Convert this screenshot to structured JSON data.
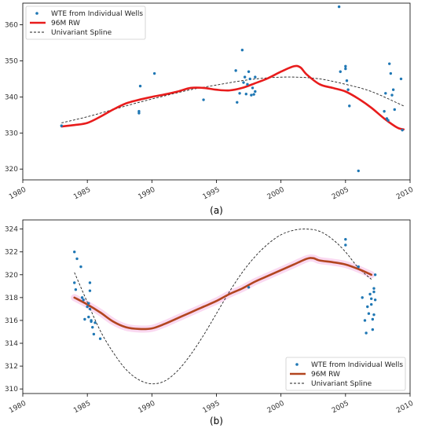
{
  "chart_data": [
    {
      "type": "scatter",
      "panel_label": "(a)",
      "xlim": [
        1980,
        2010
      ],
      "ylim": [
        317,
        366
      ],
      "xticks": [
        1980,
        1985,
        1990,
        1995,
        2000,
        2005,
        2010
      ],
      "yticks": [
        320,
        330,
        340,
        350,
        360
      ],
      "legend_position": "top-left",
      "grid": false,
      "series": [
        {
          "name": "WTE from Individual Wells",
          "kind": "scatter",
          "color": "#1f77b4",
          "points": [
            [
              1983.0,
              332.0
            ],
            [
              1989.0,
              335.5
            ],
            [
              1989.0,
              336.0
            ],
            [
              1989.1,
              343.0
            ],
            [
              1990.2,
              346.5
            ],
            [
              1994.0,
              339.2
            ],
            [
              1996.5,
              347.3
            ],
            [
              1996.6,
              338.5
            ],
            [
              1996.8,
              341.0
            ],
            [
              1997.0,
              353.0
            ],
            [
              1997.1,
              344.0
            ],
            [
              1997.2,
              345.5
            ],
            [
              1997.3,
              340.8
            ],
            [
              1997.4,
              343.5
            ],
            [
              1997.5,
              347.0
            ],
            [
              1997.6,
              345.0
            ],
            [
              1997.7,
              340.5
            ],
            [
              1997.8,
              342.5
            ],
            [
              1997.9,
              340.7
            ],
            [
              1998.0,
              345.5
            ],
            [
              1998.0,
              341.5
            ],
            [
              2004.5,
              365.0
            ],
            [
              2004.6,
              347.0
            ],
            [
              2005.0,
              348.5
            ],
            [
              2005.0,
              347.8
            ],
            [
              2005.1,
              344.5
            ],
            [
              2005.2,
              342.0
            ],
            [
              2005.3,
              337.5
            ],
            [
              2006.0,
              319.5
            ],
            [
              2008.0,
              336.0
            ],
            [
              2008.1,
              341.0
            ],
            [
              2008.2,
              334.0
            ],
            [
              2008.3,
              333.5
            ],
            [
              2008.4,
              349.2
            ],
            [
              2008.5,
              346.5
            ],
            [
              2008.6,
              340.5
            ],
            [
              2008.7,
              342.0
            ],
            [
              2008.8,
              336.5
            ],
            [
              2009.3,
              345.0
            ],
            [
              2009.4,
              330.8
            ]
          ]
        },
        {
          "name": "96M RW",
          "kind": "line",
          "color": "#e81c1c",
          "points": [
            [
              1983.0,
              331.8
            ],
            [
              1984.0,
              332.2
            ],
            [
              1985.0,
              332.8
            ],
            [
              1986.0,
              334.5
            ],
            [
              1987.0,
              336.5
            ],
            [
              1988.0,
              338.2
            ],
            [
              1989.0,
              339.2
            ],
            [
              1990.0,
              340.0
            ],
            [
              1991.0,
              340.7
            ],
            [
              1992.0,
              341.5
            ],
            [
              1993.0,
              342.5
            ],
            [
              1994.0,
              342.5
            ],
            [
              1995.0,
              342.0
            ],
            [
              1996.0,
              341.8
            ],
            [
              1997.0,
              342.5
            ],
            [
              1998.0,
              343.8
            ],
            [
              1999.0,
              345.2
            ],
            [
              2000.0,
              347.0
            ],
            [
              2001.0,
              348.5
            ],
            [
              2001.5,
              348.2
            ],
            [
              2002.0,
              346.2
            ],
            [
              2003.0,
              343.5
            ],
            [
              2004.0,
              342.5
            ],
            [
              2005.0,
              341.5
            ],
            [
              2006.0,
              339.5
            ],
            [
              2007.0,
              337.0
            ],
            [
              2008.0,
              334.0
            ],
            [
              2009.0,
              331.5
            ],
            [
              2009.5,
              331.0
            ]
          ]
        },
        {
          "name": "Univariant Spline",
          "kind": "dashed-line",
          "color": "#222222",
          "points": [
            [
              1983.0,
              332.8
            ],
            [
              1985.0,
              334.5
            ],
            [
              1987.0,
              336.5
            ],
            [
              1989.0,
              338.5
            ],
            [
              1991.0,
              340.3
            ],
            [
              1993.0,
              342.0
            ],
            [
              1995.0,
              343.3
            ],
            [
              1997.0,
              344.5
            ],
            [
              1999.0,
              345.3
            ],
            [
              2001.0,
              345.5
            ],
            [
              2003.0,
              345.0
            ],
            [
              2005.0,
              343.5
            ],
            [
              2007.0,
              341.5
            ],
            [
              2009.5,
              337.5
            ]
          ]
        }
      ]
    },
    {
      "type": "scatter",
      "panel_label": "(b)",
      "xlim": [
        1980,
        2010
      ],
      "ylim": [
        309.6,
        324.8
      ],
      "xticks": [
        1980,
        1985,
        1990,
        1995,
        2000,
        2005,
        2010
      ],
      "yticks": [
        310,
        312,
        314,
        316,
        318,
        320,
        322,
        324
      ],
      "legend_position": "bottom-right",
      "grid": false,
      "series": [
        {
          "name": "WTE from Individual Wells",
          "kind": "scatter",
          "color": "#1f77b4",
          "points": [
            [
              1984.0,
              322.0
            ],
            [
              1984.0,
              319.3
            ],
            [
              1984.1,
              318.7
            ],
            [
              1984.2,
              321.4
            ],
            [
              1984.5,
              320.7
            ],
            [
              1984.6,
              318.0
            ],
            [
              1984.7,
              317.8
            ],
            [
              1984.8,
              316.1
            ],
            [
              1985.0,
              317.2
            ],
            [
              1985.1,
              317.5
            ],
            [
              1985.1,
              316.3
            ],
            [
              1985.2,
              319.3
            ],
            [
              1985.2,
              318.6
            ],
            [
              1985.2,
              317.0
            ],
            [
              1985.3,
              316.0
            ],
            [
              1985.3,
              315.9
            ],
            [
              1985.4,
              315.4
            ],
            [
              1985.5,
              314.8
            ],
            [
              1985.6,
              315.8
            ],
            [
              1986.0,
              314.4
            ],
            [
              1997.5,
              318.9
            ],
            [
              2005.0,
              323.1
            ],
            [
              2005.0,
              322.6
            ],
            [
              2006.0,
              320.7
            ],
            [
              2006.3,
              318.0
            ],
            [
              2006.5,
              316.0
            ],
            [
              2006.6,
              314.9
            ],
            [
              2006.7,
              317.2
            ],
            [
              2006.8,
              316.6
            ],
            [
              2006.9,
              318.3
            ],
            [
              2007.0,
              317.9
            ],
            [
              2007.0,
              317.4
            ],
            [
              2007.1,
              316.1
            ],
            [
              2007.1,
              315.2
            ],
            [
              2007.2,
              318.8
            ],
            [
              2007.2,
              318.5
            ],
            [
              2007.2,
              316.5
            ],
            [
              2007.3,
              317.8
            ],
            [
              2007.3,
              320.0
            ]
          ]
        },
        {
          "name": "96M RW",
          "kind": "line",
          "color": "#b2451f",
          "points": [
            [
              1984.0,
              318.0
            ],
            [
              1985.0,
              317.4
            ],
            [
              1986.0,
              316.7
            ],
            [
              1987.0,
              315.9
            ],
            [
              1988.0,
              315.4
            ],
            [
              1989.0,
              315.25
            ],
            [
              1990.0,
              315.3
            ],
            [
              1991.0,
              315.7
            ],
            [
              1992.0,
              316.2
            ],
            [
              1993.0,
              316.7
            ],
            [
              1994.0,
              317.2
            ],
            [
              1995.0,
              317.7
            ],
            [
              1996.0,
              318.3
            ],
            [
              1997.0,
              318.8
            ],
            [
              1998.0,
              319.4
            ],
            [
              1999.0,
              319.9
            ],
            [
              2000.0,
              320.4
            ],
            [
              2001.0,
              320.9
            ],
            [
              2002.0,
              321.4
            ],
            [
              2002.5,
              321.45
            ],
            [
              2003.0,
              321.25
            ],
            [
              2004.0,
              321.1
            ],
            [
              2005.0,
              320.9
            ],
            [
              2006.0,
              320.5
            ],
            [
              2007.0,
              320.0
            ]
          ]
        },
        {
          "name": "Univariant Spline",
          "kind": "dashed-line",
          "color": "#222222",
          "points": [
            [
              1984.0,
              320.2
            ],
            [
              1985.0,
              317.6
            ],
            [
              1986.0,
              315.1
            ],
            [
              1987.0,
              313.2
            ],
            [
              1988.0,
              311.7
            ],
            [
              1989.0,
              310.8
            ],
            [
              1990.0,
              310.45
            ],
            [
              1991.0,
              310.7
            ],
            [
              1992.0,
              311.6
            ],
            [
              1993.0,
              313.0
            ],
            [
              1994.0,
              314.7
            ],
            [
              1995.0,
              316.6
            ],
            [
              1996.0,
              318.5
            ],
            [
              1997.0,
              320.2
            ],
            [
              1998.0,
              321.6
            ],
            [
              1999.0,
              322.7
            ],
            [
              2000.0,
              323.5
            ],
            [
              2001.0,
              323.9
            ],
            [
              2002.0,
              324.0
            ],
            [
              2003.0,
              323.8
            ],
            [
              2004.0,
              323.1
            ],
            [
              2005.0,
              322.0
            ],
            [
              2006.0,
              320.6
            ],
            [
              2007.0,
              319.6
            ]
          ]
        }
      ]
    }
  ]
}
